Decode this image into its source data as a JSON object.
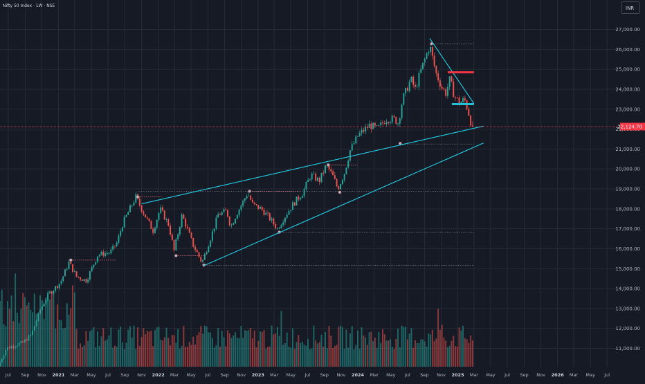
{
  "header": {
    "symbol_title": "Nifty 50 Index · 1W · NSE",
    "currency": "INR"
  },
  "colors": {
    "background": "#161a25",
    "grid": "#262a36",
    "axis_text": "#b2b5be",
    "up": "#26a69a",
    "down": "#ef5350",
    "trendline": "#22c1d6",
    "price_line": "#f23645"
  },
  "chart_data": {
    "type": "candlestick",
    "title": "Nifty 50 Index · 1W · NSE",
    "y_axis": {
      "ticks": [
        11000,
        12000,
        13000,
        14000,
        15000,
        16000,
        17000,
        18000,
        19000,
        20000,
        21000,
        22000,
        23000,
        24000,
        25000,
        26000,
        27000
      ],
      "tick_labels": [
        "11,000.00",
        "12,000.00",
        "13,000.00",
        "14,000.00",
        "15,000.00",
        "16,000.00",
        "17,000.00",
        "18,000.00",
        "19,000.00",
        "20,000.00",
        "21,000.00",
        "22,000.00",
        "23,000.00",
        "24,000.00",
        "25,000.00",
        "26,000.00",
        "27,000.00"
      ],
      "range": [
        10450,
        27600
      ]
    },
    "x_axis": {
      "labels": [
        "Jul",
        "Sep",
        "Nov",
        "2021",
        "Mar",
        "May",
        "Jul",
        "Sep",
        "Nov",
        "2022",
        "Mar",
        "May",
        "Jul",
        "Sep",
        "Nov",
        "2023",
        "Mar",
        "May",
        "Jul",
        "Sep",
        "Nov",
        "2024",
        "Mar",
        "May",
        "Jul",
        "Sep",
        "Nov",
        "2025",
        "Mar",
        "May",
        "Jul",
        "Sep",
        "Nov",
        "2026",
        "Mar",
        "May",
        "Jul"
      ],
      "bold_labels": [
        "2021",
        "2022",
        "2023",
        "2024",
        "2025",
        "2026"
      ],
      "range": [
        "2020-06-01",
        "2026-08-10"
      ]
    },
    "last_price": 22124.7,
    "last_price_label": "22,124.70",
    "price_path": [
      [
        "2020-06-01",
        10100
      ],
      [
        "2020-07-01",
        11000
      ],
      [
        "2020-09-01",
        11300
      ],
      [
        "2020-10-01",
        11700
      ],
      [
        "2020-11-01",
        12900
      ],
      [
        "2020-12-01",
        13700
      ],
      [
        "2021-01-15",
        14300
      ],
      [
        "2021-02-15",
        15300
      ],
      [
        "2021-03-15",
        14600
      ],
      [
        "2021-04-20",
        14400
      ],
      [
        "2021-06-01",
        15700
      ],
      [
        "2021-07-15",
        15800
      ],
      [
        "2021-08-10",
        16300
      ],
      [
        "2021-09-01",
        17300
      ],
      [
        "2021-10-18",
        18600
      ],
      [
        "2021-11-15",
        17800
      ],
      [
        "2021-12-20",
        16900
      ],
      [
        "2022-01-15",
        18000
      ],
      [
        "2022-02-15",
        17200
      ],
      [
        "2022-03-07",
        15900
      ],
      [
        "2022-04-05",
        17700
      ],
      [
        "2022-05-15",
        16200
      ],
      [
        "2022-06-17",
        15300
      ],
      [
        "2022-07-15",
        16400
      ],
      [
        "2022-08-15",
        17700
      ],
      [
        "2022-09-15",
        17900
      ],
      [
        "2022-09-30",
        17100
      ],
      [
        "2022-10-20",
        17700
      ],
      [
        "2022-12-01",
        18800
      ],
      [
        "2022-12-20",
        18200
      ],
      [
        "2023-01-20",
        18000
      ],
      [
        "2023-02-15",
        17600
      ],
      [
        "2023-03-20",
        17000
      ],
      [
        "2023-04-20",
        17700
      ],
      [
        "2023-05-20",
        18300
      ],
      [
        "2023-06-20",
        18800
      ],
      [
        "2023-07-20",
        19700
      ],
      [
        "2023-08-20",
        19400
      ],
      [
        "2023-09-15",
        20200
      ],
      [
        "2023-10-10",
        19600
      ],
      [
        "2023-10-27",
        19000
      ],
      [
        "2023-11-20",
        19800
      ],
      [
        "2023-12-10",
        20900
      ],
      [
        "2024-01-10",
        21700
      ],
      [
        "2024-02-20",
        22200
      ],
      [
        "2024-03-20",
        22000
      ],
      [
        "2024-04-20",
        22500
      ],
      [
        "2024-05-20",
        22500
      ],
      [
        "2024-06-04",
        22300
      ],
      [
        "2024-06-20",
        23500
      ],
      [
        "2024-07-20",
        24500
      ],
      [
        "2024-08-05",
        24000
      ],
      [
        "2024-08-25",
        24900
      ],
      [
        "2024-09-27",
        26200
      ],
      [
        "2024-10-20",
        24800
      ],
      [
        "2024-11-10",
        24100
      ],
      [
        "2024-11-25",
        23800
      ],
      [
        "2024-12-10",
        24500
      ],
      [
        "2024-12-25",
        23700
      ],
      [
        "2025-01-15",
        23300
      ],
      [
        "2025-02-01",
        23500
      ],
      [
        "2025-02-15",
        22900
      ],
      [
        "2025-02-28",
        22124.7
      ]
    ],
    "pivot_points": [
      {
        "date": "2021-02-15",
        "price": 15430
      },
      {
        "date": "2021-10-18",
        "price": 18600
      },
      {
        "date": "2022-03-07",
        "price": 15650
      },
      {
        "date": "2022-06-17",
        "price": 15180
      },
      {
        "date": "2022-12-01",
        "price": 18880
      },
      {
        "date": "2023-03-20",
        "price": 16830
      },
      {
        "date": "2023-09-15",
        "price": 20200
      },
      {
        "date": "2023-10-27",
        "price": 18830
      },
      {
        "date": "2024-06-04",
        "price": 21280
      },
      {
        "date": "2024-09-27",
        "price": 26280
      }
    ],
    "drawings": {
      "trendlines": [
        {
          "from": [
            "2021-11-01",
            18250
          ],
          "to": [
            "2025-04-05",
            22150
          ]
        },
        {
          "from": [
            "2022-06-17",
            15150
          ],
          "to": [
            "2025-04-05",
            21300
          ]
        },
        {
          "from": [
            "2024-09-20",
            26550
          ],
          "to": [
            "2025-02-28",
            23300
          ]
        }
      ],
      "dotted_levels": [
        {
          "from": "2021-10-18",
          "to": "2025-03-01",
          "price": 18880
        },
        {
          "from": "2022-06-17",
          "to": "2025-03-01",
          "price": 15170
        },
        {
          "from": "2023-03-20",
          "to": "2025-03-01",
          "price": 16830
        },
        {
          "from": "2024-06-04",
          "to": "2025-03-01",
          "price": 21250
        },
        {
          "from": "2024-09-27",
          "to": "2025-03-01",
          "price": 26280
        }
      ],
      "pink_levels": [
        {
          "from": "2021-02-15",
          "to": "2021-08-01",
          "price": 15430
        },
        {
          "from": "2021-10-18",
          "to": "2022-01-15",
          "price": 18600
        },
        {
          "from": "2022-03-07",
          "to": "2022-06-17",
          "price": 15650
        },
        {
          "from": "2022-12-01",
          "to": "2023-06-01",
          "price": 18880
        },
        {
          "from": "2023-09-15",
          "to": "2024-01-01",
          "price": 20200
        }
      ],
      "red_marker": {
        "from": "2024-11-25",
        "to": "2025-03-01",
        "price": 24850
      },
      "cyan_marker": {
        "from": "2024-12-10",
        "to": "2025-03-01",
        "price": 23250
      }
    },
    "grid": true
  }
}
